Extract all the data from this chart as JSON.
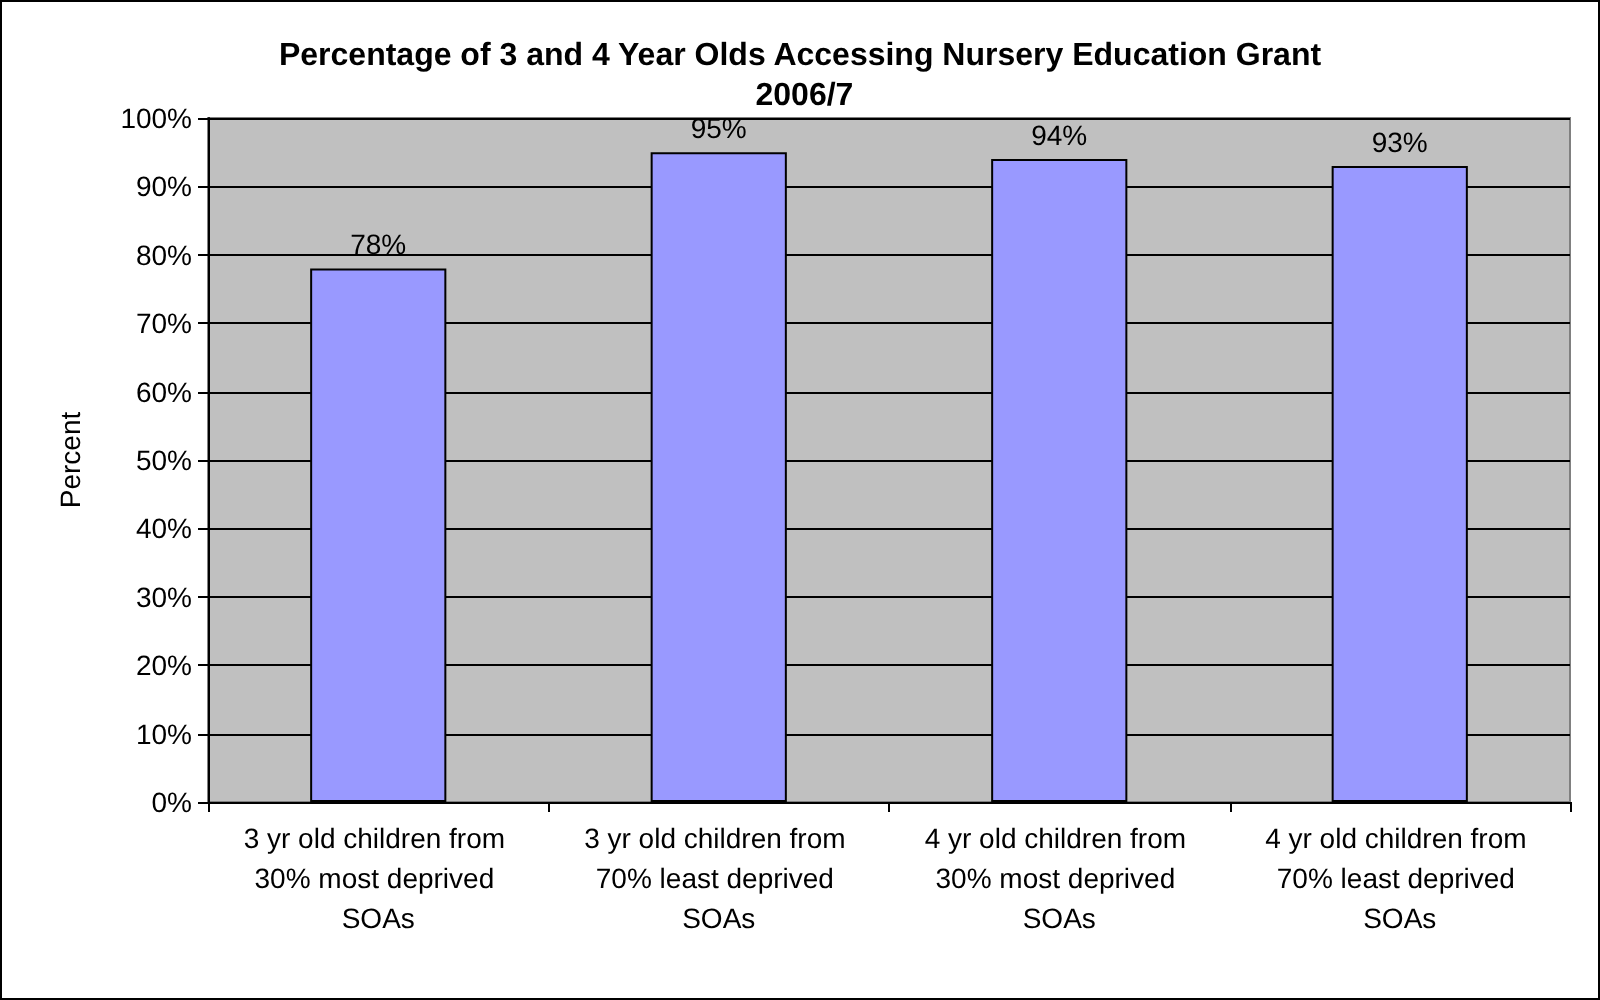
{
  "chart_data": {
    "type": "bar",
    "title": "Percentage of 3 and 4 Year Olds Accessing Nursery Education Grant 2006/7",
    "ylabel": "Percent",
    "categories": [
      "3 yr old children from 30% most deprived SOAs",
      "3 yr old children from 70% least deprived SOAs",
      "4 yr old children from 30% most deprived SOAs",
      "4 yr old children from 70% least deprived SOAs"
    ],
    "values": [
      78,
      95,
      94,
      93
    ],
    "value_labels": [
      "78%",
      "95%",
      "94%",
      "93%"
    ],
    "color": "#9999ff",
    "ylim": [
      0,
      100
    ],
    "yticks": [
      {
        "value": 0,
        "label": "0%"
      },
      {
        "value": 10,
        "label": "10%"
      },
      {
        "value": 20,
        "label": "20%"
      },
      {
        "value": 30,
        "label": "30%"
      },
      {
        "value": 40,
        "label": "40%"
      },
      {
        "value": 50,
        "label": "50%"
      },
      {
        "value": 60,
        "label": "60%"
      },
      {
        "value": 70,
        "label": "70%"
      },
      {
        "value": 80,
        "label": "80%"
      },
      {
        "value": 90,
        "label": "90%"
      },
      {
        "value": 100,
        "label": "100%"
      }
    ],
    "grid": "y"
  }
}
